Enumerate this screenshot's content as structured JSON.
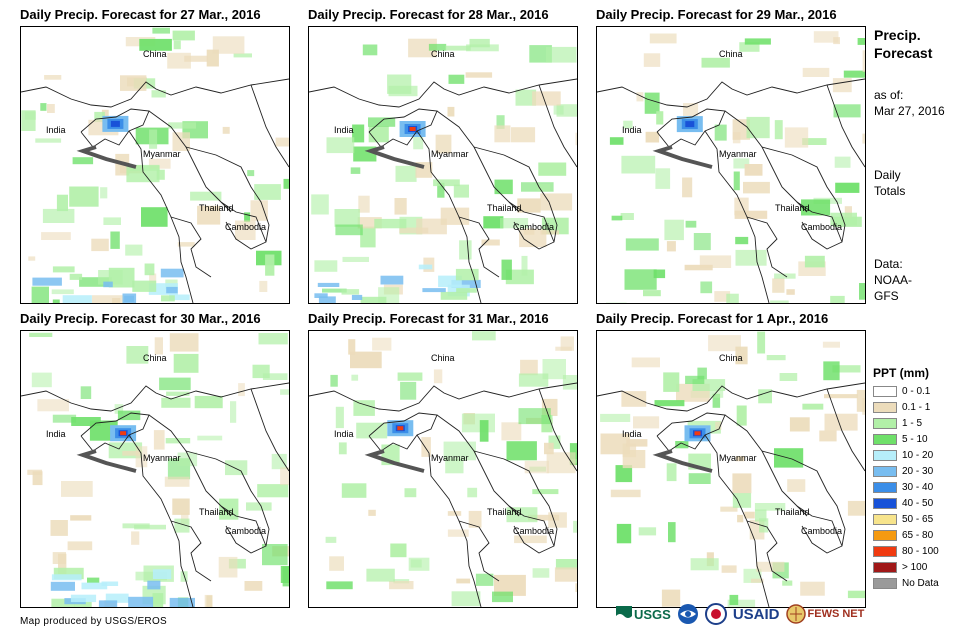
{
  "panels": [
    {
      "title": "Daily Precip. Forecast for 27 Mar., 2016"
    },
    {
      "title": "Daily Precip. Forecast for 28 Mar., 2016"
    },
    {
      "title": "Daily Precip. Forecast for 29 Mar., 2016"
    },
    {
      "title": "Daily Precip. Forecast for 30 Mar., 2016"
    },
    {
      "title": "Daily Precip. Forecast for 31 Mar., 2016"
    },
    {
      "title": "Daily Precip. Forecast for 1 Apr., 2016"
    }
  ],
  "labels": {
    "china": "China",
    "india": "India",
    "myanmar": "Myanmar",
    "thailand": "Thailand",
    "cambodia": "Cambodia"
  },
  "side": {
    "title_line1": "Precip.",
    "title_line2": "Forecast",
    "asof_line1": "as of:",
    "asof_line2": "Mar 27, 2016",
    "totals_line1": "Daily",
    "totals_line2": "Totals",
    "data_line1": "Data:",
    "data_line2": "NOAA-",
    "data_line3": "GFS"
  },
  "legend": {
    "title": "PPT (mm)",
    "items": [
      {
        "label": "0 - 0.1",
        "color": "#ffffff"
      },
      {
        "label": "0.1 - 1",
        "color": "#ecdcbb"
      },
      {
        "label": "1 - 5",
        "color": "#b2f0a8"
      },
      {
        "label": "5 - 10",
        "color": "#6fe06a"
      },
      {
        "label": "10 - 20",
        "color": "#b6eefa"
      },
      {
        "label": "20 - 30",
        "color": "#78bdf0"
      },
      {
        "label": "30 - 40",
        "color": "#3b8ee8"
      },
      {
        "label": "40 - 50",
        "color": "#1852d8"
      },
      {
        "label": "50 - 65",
        "color": "#f7e48c"
      },
      {
        "label": "65 - 80",
        "color": "#f59a10"
      },
      {
        "label": "80 - 100",
        "color": "#f03a10"
      },
      {
        "label": "> 100",
        "color": "#a01818"
      },
      {
        "label": "No Data",
        "color": "#9a9a9a"
      }
    ]
  },
  "credit": "Map produced by USGS/EROS",
  "logos": {
    "usgs": "USGS",
    "usaid": "USAID",
    "fewsnet": "FEWS NET"
  }
}
